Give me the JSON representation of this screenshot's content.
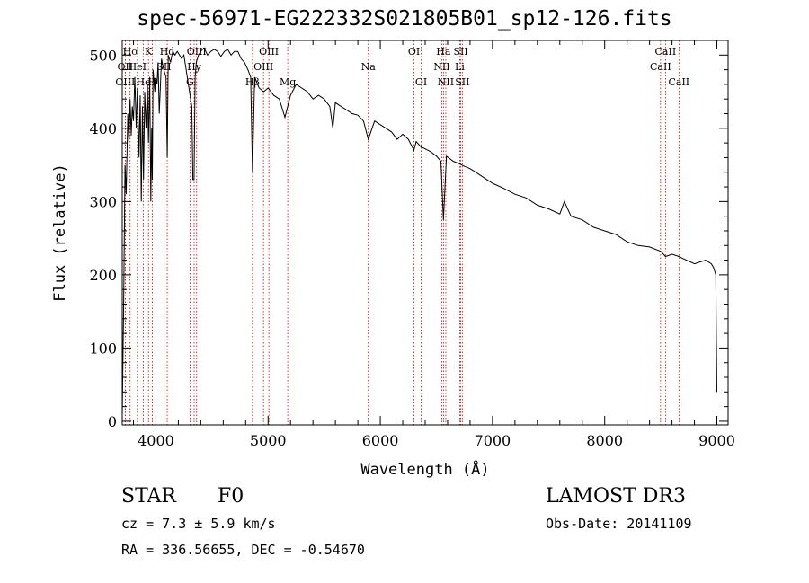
{
  "title": "spec-56971-EG222332S021805B01_sp12-126.fits",
  "info": {
    "object_type": "STAR",
    "subclass": "F0",
    "survey": "LAMOST DR3",
    "cz": "cz = 7.3 ± 5.9 km/s",
    "obs_date": "Obs-Date: 20141109",
    "coords": "RA = 336.56655, DEC =  -0.54670"
  },
  "colors": {
    "spectrum": "#000000",
    "line_markers": "#cc0000",
    "axes": "#000000"
  },
  "chart_data": {
    "type": "line",
    "xlabel": "Wavelength (Å)",
    "ylabel": "Flux (relative)",
    "xlim": [
      3700,
      9100
    ],
    "ylim": [
      -5,
      520
    ],
    "xticks": [
      4000,
      5000,
      6000,
      7000,
      8000,
      9000
    ],
    "yticks": [
      0,
      100,
      200,
      300,
      400,
      500
    ],
    "series": [
      {
        "name": "spectrum",
        "x": [
          3700,
          3712,
          3725,
          3735,
          3750,
          3760,
          3770,
          3780,
          3790,
          3800,
          3812,
          3825,
          3835,
          3850,
          3860,
          3870,
          3880,
          3890,
          3900,
          3912,
          3925,
          3934,
          3945,
          3955,
          3963,
          3968,
          3975,
          3990,
          4000,
          4010,
          4020,
          4030,
          4050,
          4070,
          4090,
          4101,
          4110,
          4130,
          4150,
          4170,
          4190,
          4210,
          4230,
          4250,
          4270,
          4290,
          4310,
          4320,
          4330,
          4340,
          4350,
          4360,
          4380,
          4400,
          4430,
          4460,
          4490,
          4520,
          4550,
          4580,
          4610,
          4640,
          4670,
          4700,
          4730,
          4760,
          4790,
          4820,
          4845,
          4861,
          4880,
          4920,
          4960,
          5000,
          5050,
          5100,
          5150,
          5175,
          5200,
          5250,
          5300,
          5350,
          5400,
          5450,
          5500,
          5550,
          5577,
          5600,
          5650,
          5700,
          5750,
          5800,
          5850,
          5893,
          5950,
          6000,
          6050,
          6100,
          6150,
          6200,
          6250,
          6300,
          6320,
          6360,
          6400,
          6450,
          6500,
          6540,
          6563,
          6590,
          6650,
          6700,
          6750,
          6800,
          6850,
          6900,
          6950,
          7000,
          7100,
          7200,
          7300,
          7400,
          7500,
          7600,
          7640,
          7700,
          7800,
          7900,
          8000,
          8100,
          8200,
          8300,
          8400,
          8500,
          8542,
          8600,
          8662,
          8700,
          8800,
          8900,
          8950,
          8970,
          8990,
          9000
        ],
        "y": [
          5,
          150,
          350,
          310,
          420,
          380,
          440,
          390,
          430,
          410,
          470,
          400,
          455,
          360,
          445,
          300,
          430,
          330,
          450,
          400,
          460,
          380,
          470,
          300,
          400,
          330,
          480,
          450,
          470,
          460,
          490,
          420,
          495,
          480,
          470,
          360,
          500,
          490,
          505,
          500,
          505,
          500,
          495,
          500,
          480,
          460,
          440,
          430,
          330,
          330,
          470,
          490,
          500,
          505,
          510,
          500,
          505,
          508,
          505,
          498,
          505,
          508,
          500,
          505,
          505,
          495,
          490,
          480,
          470,
          340,
          470,
          455,
          450,
          455,
          445,
          440,
          415,
          430,
          445,
          460,
          455,
          450,
          440,
          445,
          440,
          430,
          400,
          435,
          430,
          425,
          420,
          418,
          410,
          385,
          410,
          405,
          400,
          395,
          385,
          392,
          385,
          370,
          382,
          375,
          372,
          368,
          362,
          355,
          275,
          362,
          355,
          352,
          348,
          345,
          340,
          335,
          330,
          325,
          318,
          310,
          305,
          295,
          290,
          283,
          300,
          280,
          275,
          265,
          260,
          255,
          245,
          240,
          238,
          232,
          225,
          228,
          225,
          222,
          215,
          220,
          215,
          210,
          200,
          40
        ]
      }
    ],
    "line_markers": [
      {
        "label": "Ho",
        "wavelength": 3770,
        "row": 0
      },
      {
        "label": "OII",
        "wavelength": 3727,
        "row": 1
      },
      {
        "label": "OIII",
        "wavelength": 3727,
        "row": 2
      },
      {
        "label": "He",
        "wavelength": 3889,
        "row": 2
      },
      {
        "label": "HeI",
        "wavelength": 3835,
        "row": 1
      },
      {
        "label": "K",
        "wavelength": 3934,
        "row": 0
      },
      {
        "label": "H",
        "wavelength": 3968,
        "row": 2
      },
      {
        "label": "Hd",
        "wavelength": 4101,
        "row": 0
      },
      {
        "label": "SII",
        "wavelength": 4072,
        "row": 1
      },
      {
        "label": "G",
        "wavelength": 4304,
        "row": 2
      },
      {
        "label": "Hy",
        "wavelength": 4341,
        "row": 1
      },
      {
        "label": "OIII",
        "wavelength": 4363,
        "row": 0
      },
      {
        "label": "Hβ",
        "wavelength": 4861,
        "row": 2
      },
      {
        "label": "OIII",
        "wavelength": 5007,
        "row": 0
      },
      {
        "label": "OIII",
        "wavelength": 4959,
        "row": 1
      },
      {
        "label": "Mg",
        "wavelength": 5175,
        "row": 2
      },
      {
        "label": "Na",
        "wavelength": 5893,
        "row": 1
      },
      {
        "label": "OI",
        "wavelength": 6300,
        "row": 0
      },
      {
        "label": "OI",
        "wavelength": 6364,
        "row": 2
      },
      {
        "label": "Ha",
        "wavelength": 6563,
        "row": 0
      },
      {
        "label": "NII",
        "wavelength": 6548,
        "row": 1
      },
      {
        "label": "NII",
        "wavelength": 6584,
        "row": 2
      },
      {
        "label": "SII",
        "wavelength": 6717,
        "row": 0
      },
      {
        "label": "Li",
        "wavelength": 6708,
        "row": 1
      },
      {
        "label": "SII",
        "wavelength": 6731,
        "row": 2
      },
      {
        "label": "CaII",
        "wavelength": 8542,
        "row": 0
      },
      {
        "label": "CaII",
        "wavelength": 8498,
        "row": 1
      },
      {
        "label": "CaII",
        "wavelength": 8662,
        "row": 2
      }
    ]
  }
}
